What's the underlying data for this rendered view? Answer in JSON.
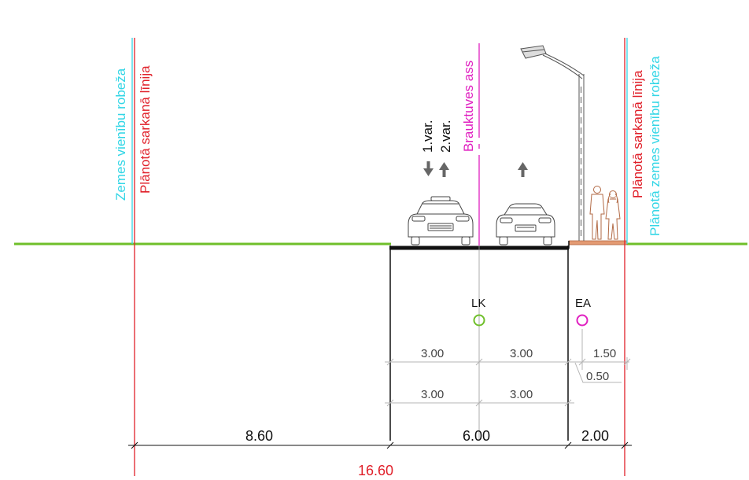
{
  "labels": {
    "left_boundary": "Zemes vienību robeža",
    "left_red_line": "Plānotā sarkanā līnija",
    "right_red_line": "Plānotā sarkanā līnija",
    "right_boundary": "Plānotā zemes vienību robeža",
    "axis": "Brauktuves ass",
    "var1": "1.var.",
    "var2": "2.var.",
    "lk": "LK",
    "ea": "EA"
  },
  "dimensions": {
    "lane_v1_left": "3.00",
    "lane_v1_right": "3.00",
    "lane_v2_left": "3.00",
    "lane_v2_right": "3.00",
    "sidewalk": "1.50",
    "offset": "0.50",
    "left_zone": "8.60",
    "carriageway": "6.00",
    "right_zone": "2.00",
    "total": "16.60"
  },
  "colors": {
    "ground": "#6fbf2a",
    "cyan": "#33d6e6",
    "red": "#e0202a",
    "magenta": "#e020c0",
    "sidewalk": "#e39a72",
    "dimension": "#b5b5b5",
    "lk_ring": "#6fbf2a",
    "ea_ring": "#e020c0"
  }
}
